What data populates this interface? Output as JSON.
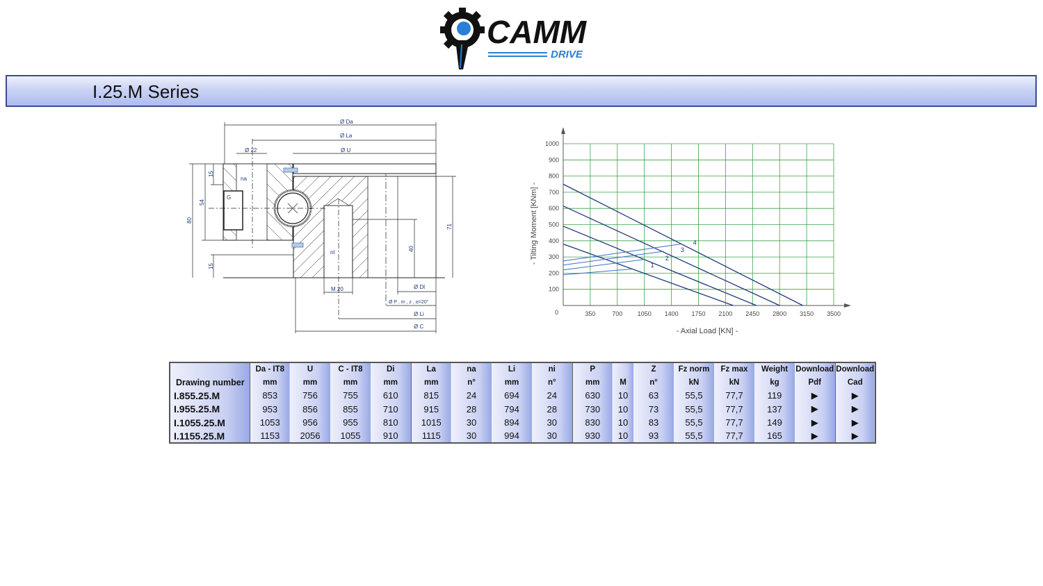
{
  "logo": {
    "text": "CAMM",
    "subtext": "DRIVE",
    "colors": {
      "gear": "#111111",
      "accent": "#2a7fd4"
    }
  },
  "header": {
    "title": "I.25.M Series",
    "colors": {
      "border": "#3a4a93",
      "fill": "#aebdf0"
    }
  },
  "drawing": {
    "labels": {
      "da": "Ø Da",
      "la": "Ø La",
      "d22": "Ø 22",
      "u": "Ø U",
      "na": "na",
      "g": "G",
      "nl": "nl",
      "m20": "M 20",
      "dl": "Ø Dl",
      "p": "Ø P , m , z , α=20°",
      "li": "Ø Li",
      "c": "Ø C",
      "h80": "80",
      "h54": "54",
      "h15a": "15",
      "h15b": "15",
      "h71": "71",
      "h40": "40"
    }
  },
  "chart_data": {
    "type": "line",
    "xlabel": "-  Axial Load  [KN]  -",
    "ylabel": "-  Tilting Moment  [KNm]  -",
    "xlim": [
      0,
      3500
    ],
    "ylim": [
      0,
      1000
    ],
    "grid": true,
    "grid_color": "#3aa14a",
    "line_color": "#1f3a7a",
    "origin_label": "0",
    "xticks": [
      350,
      700,
      1050,
      1400,
      1750,
      2100,
      2450,
      2800,
      3150,
      3500
    ],
    "yticks": [
      100,
      200,
      300,
      400,
      500,
      600,
      700,
      800,
      900,
      1000
    ],
    "series": [
      {
        "name": "1",
        "x": [
          0,
          2200
        ],
        "y": [
          380,
          0
        ],
        "label_at": [
          1130,
          235
        ]
      },
      {
        "name": "2",
        "x": [
          0,
          2500
        ],
        "y": [
          490,
          0
        ],
        "label_at": [
          1320,
          280
        ]
      },
      {
        "name": "3",
        "x": [
          0,
          2800
        ],
        "y": [
          615,
          0
        ],
        "label_at": [
          1520,
          330
        ]
      },
      {
        "name": "4",
        "x": [
          0,
          3100
        ],
        "y": [
          750,
          0
        ],
        "label_at": [
          1680,
          375
        ]
      },
      {
        "x": [
          0,
          880
        ],
        "y": [
          190,
          225
        ]
      },
      {
        "x": [
          0,
          1050
        ],
        "y": [
          220,
          285
        ]
      },
      {
        "x": [
          0,
          1300
        ],
        "y": [
          250,
          335
        ]
      },
      {
        "x": [
          0,
          1520
        ],
        "y": [
          275,
          380
        ]
      }
    ]
  },
  "table": {
    "header1": [
      "",
      "Da - IT8",
      "U",
      "C - IT8",
      "Di",
      "La",
      "na",
      "Li",
      "ni",
      "P",
      "",
      "Z",
      "Fz norm",
      "Fz max",
      "Weight",
      "Download",
      "Download"
    ],
    "header2": [
      "Drawing number",
      "mm",
      "mm",
      "mm",
      "mm",
      "mm",
      "n°",
      "mm",
      "n°",
      "mm",
      "M",
      "n°",
      "kN",
      "kN",
      "kg",
      "Pdf",
      "Cad"
    ],
    "rows": [
      [
        "I.855.25.M",
        "853",
        "756",
        "755",
        "610",
        "815",
        "24",
        "694",
        "24",
        "630",
        "10",
        "63",
        "55,5",
        "77,7",
        "119",
        "▶",
        "▶"
      ],
      [
        "I.955.25.M",
        "953",
        "856",
        "855",
        "710",
        "915",
        "28",
        "794",
        "28",
        "730",
        "10",
        "73",
        "55,5",
        "77,7",
        "137",
        "▶",
        "▶"
      ],
      [
        "I.1055.25.M",
        "1053",
        "956",
        "955",
        "810",
        "1015",
        "30",
        "894",
        "30",
        "830",
        "10",
        "83",
        "55,5",
        "77,7",
        "149",
        "▶",
        "▶"
      ],
      [
        "I.1155.25.M",
        "1153",
        "2056",
        "1055",
        "910",
        "1115",
        "30",
        "994",
        "30",
        "930",
        "10",
        "93",
        "55,5",
        "77,7",
        "165",
        "▶",
        "▶"
      ]
    ]
  }
}
